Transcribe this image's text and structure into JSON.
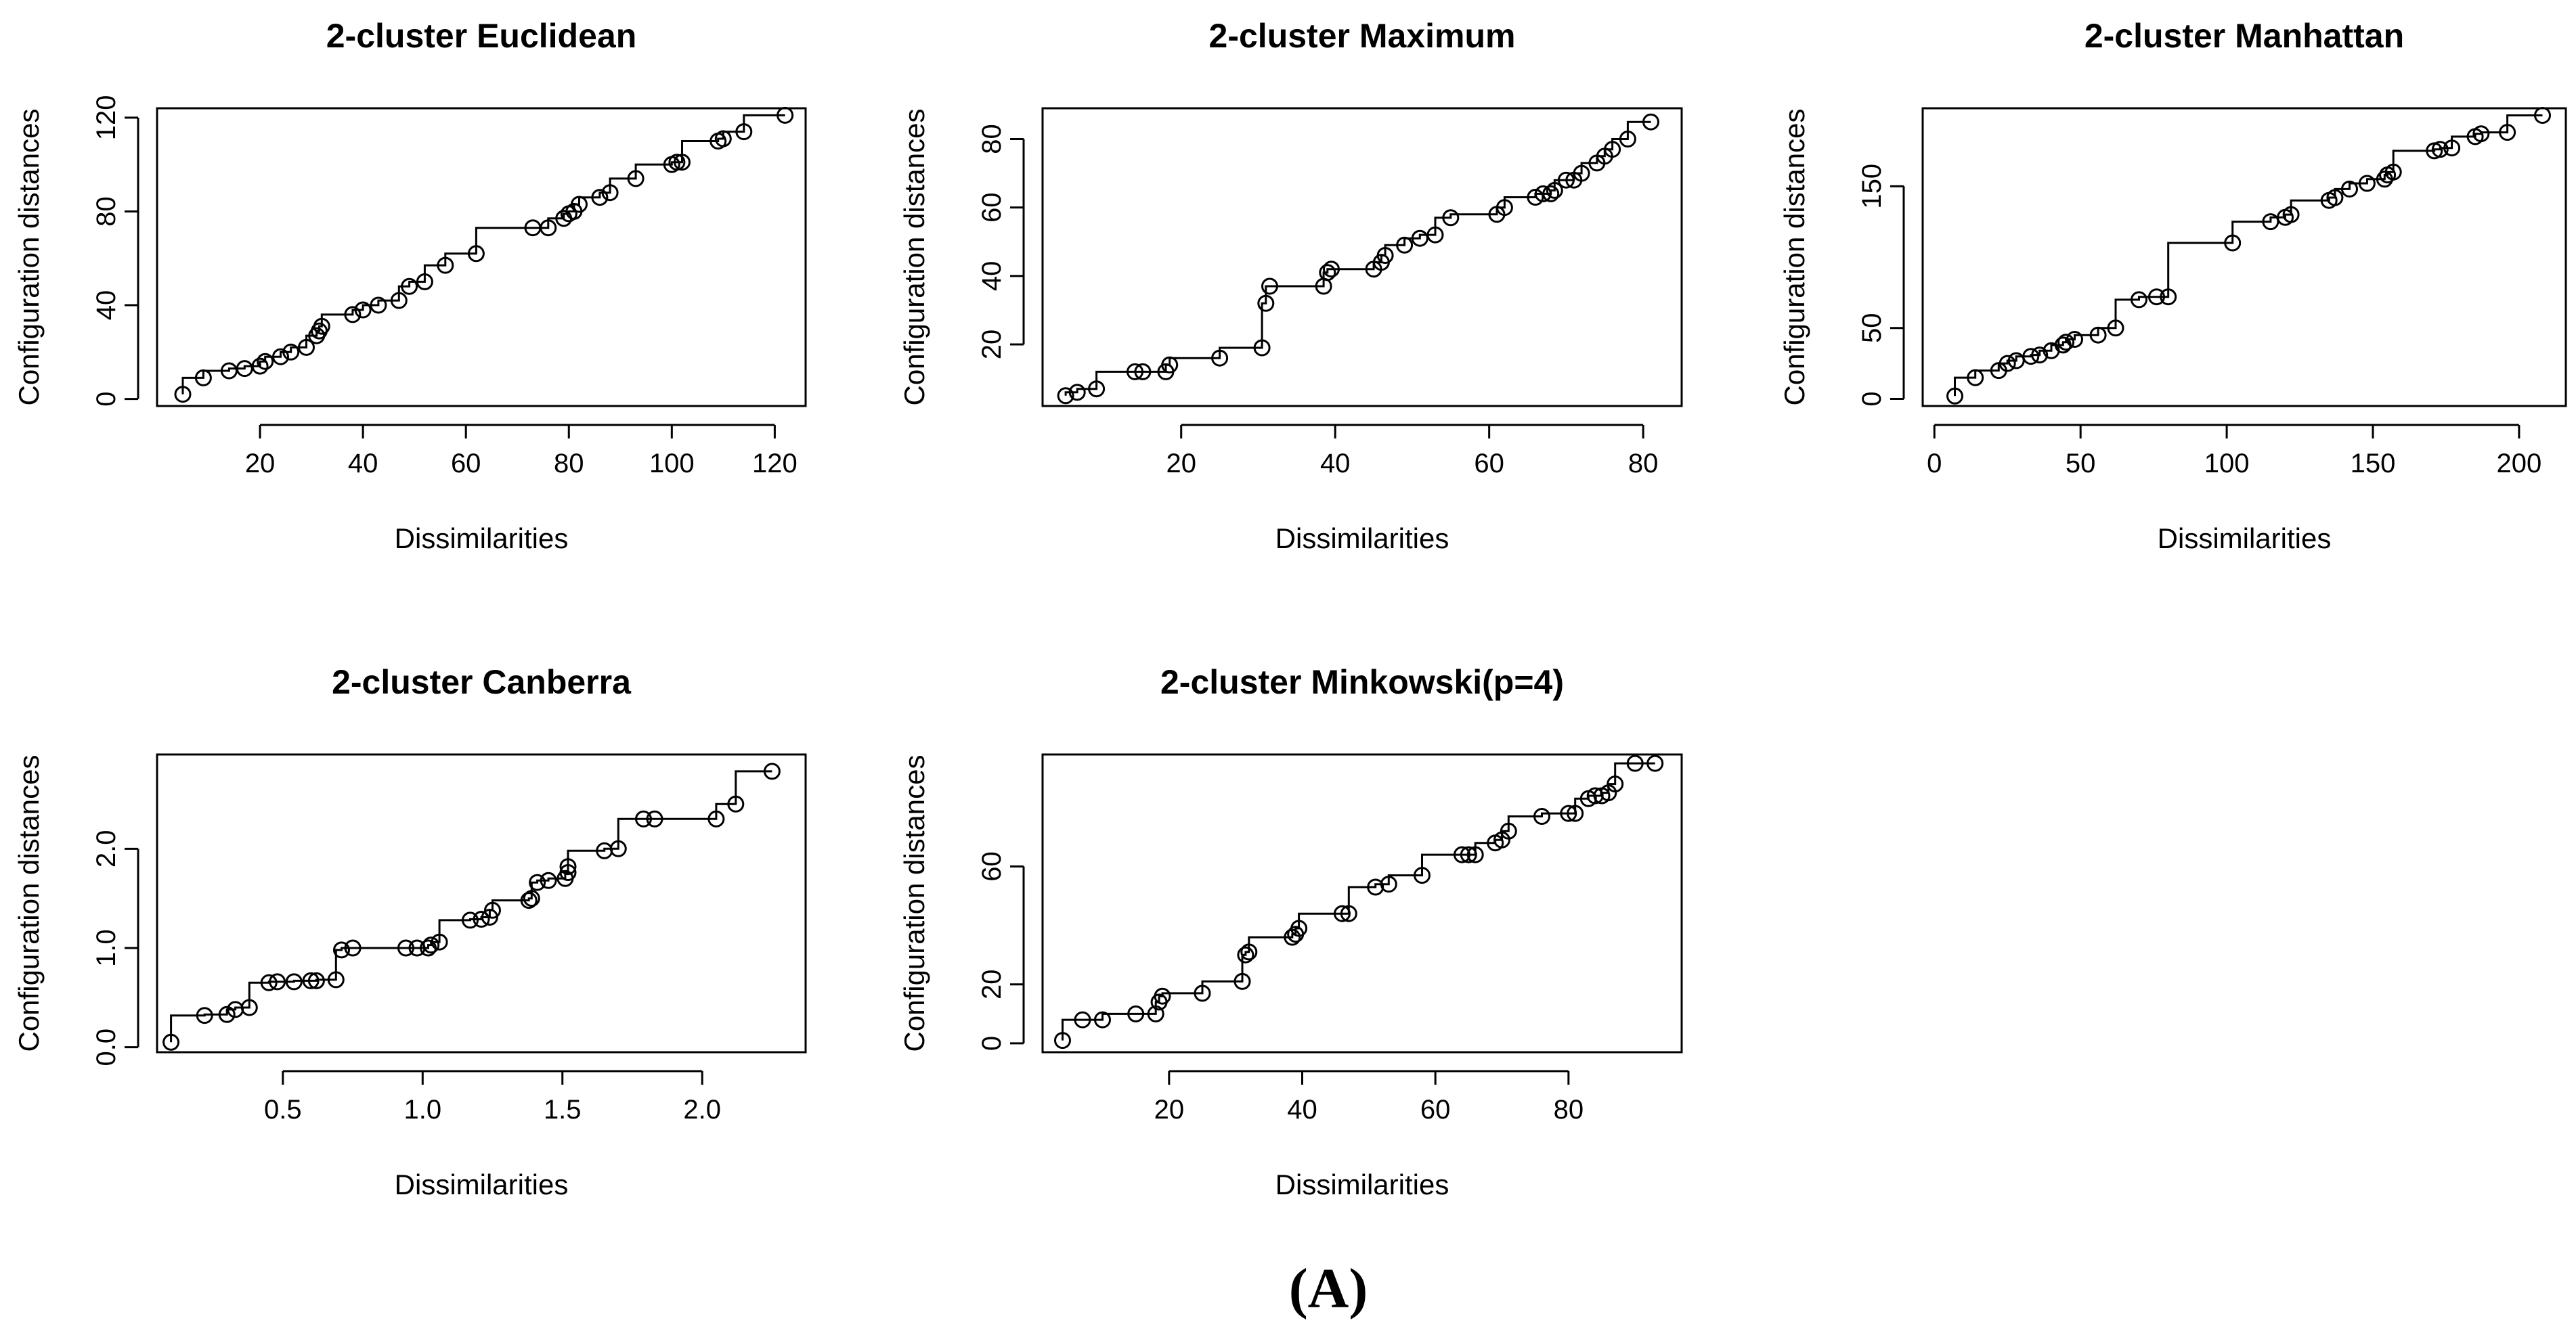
{
  "caption": "(A)",
  "chart_data": [
    {
      "type": "scatter",
      "title": "2-cluster Euclidean",
      "xlabel": "Dissimilarities",
      "ylabel": "Configuration distances",
      "xlim": [
        0,
        126
      ],
      "ylim": [
        -3,
        124
      ],
      "xticks": [
        20,
        40,
        60,
        80,
        100,
        120
      ],
      "yticks": [
        0,
        40,
        80,
        120
      ],
      "step_line": true,
      "points": [
        [
          5,
          2
        ],
        [
          9,
          9
        ],
        [
          14,
          12
        ],
        [
          17,
          13
        ],
        [
          20,
          14
        ],
        [
          21,
          16
        ],
        [
          24,
          18
        ],
        [
          26,
          20
        ],
        [
          29,
          22
        ],
        [
          31,
          27
        ],
        [
          31.5,
          29
        ],
        [
          32,
          31
        ],
        [
          38,
          36
        ],
        [
          40,
          38
        ],
        [
          43,
          40
        ],
        [
          47,
          42
        ],
        [
          49,
          48
        ],
        [
          52,
          50
        ],
        [
          56,
          57
        ],
        [
          62,
          62
        ],
        [
          73,
          73
        ],
        [
          76,
          73
        ],
        [
          79,
          77
        ],
        [
          80,
          79
        ],
        [
          81,
          80
        ],
        [
          82,
          83
        ],
        [
          86,
          86
        ],
        [
          88,
          88
        ],
        [
          93,
          94
        ],
        [
          100,
          100
        ],
        [
          101,
          101
        ],
        [
          102,
          101
        ],
        [
          109,
          110
        ],
        [
          110,
          111
        ],
        [
          114,
          114
        ],
        [
          122,
          121
        ]
      ]
    },
    {
      "type": "scatter",
      "title": "2-cluster Maximum",
      "xlabel": "Dissimilarities",
      "ylabel": "Configuration distances",
      "xlim": [
        2,
        85
      ],
      "ylim": [
        2,
        89
      ],
      "xticks": [
        20,
        40,
        60,
        80
      ],
      "yticks": [
        20,
        40,
        60,
        80
      ],
      "step_line": true,
      "points": [
        [
          5,
          5
        ],
        [
          6.5,
          6
        ],
        [
          9,
          7
        ],
        [
          14,
          12
        ],
        [
          15,
          12
        ],
        [
          18,
          12
        ],
        [
          18.5,
          14
        ],
        [
          25,
          16
        ],
        [
          30.5,
          19
        ],
        [
          31,
          32
        ],
        [
          31.5,
          37
        ],
        [
          38.5,
          37
        ],
        [
          39,
          41
        ],
        [
          39.5,
          42
        ],
        [
          45,
          42
        ],
        [
          46,
          44
        ],
        [
          46.5,
          46
        ],
        [
          49,
          49
        ],
        [
          51,
          51
        ],
        [
          53,
          52
        ],
        [
          55,
          57
        ],
        [
          61,
          58
        ],
        [
          62,
          60
        ],
        [
          66,
          63
        ],
        [
          67,
          64
        ],
        [
          68,
          64
        ],
        [
          68.5,
          65
        ],
        [
          70,
          68
        ],
        [
          71,
          68
        ],
        [
          72,
          70
        ],
        [
          74,
          73
        ],
        [
          75,
          75
        ],
        [
          76,
          77
        ],
        [
          78,
          80
        ],
        [
          81,
          85
        ]
      ]
    },
    {
      "type": "scatter",
      "title": "2-cluster Manhattan",
      "xlabel": "Dissimilarities",
      "ylabel": "Configuration distances",
      "xlim": [
        -4,
        216
      ],
      "ylim": [
        -5,
        205
      ],
      "xticks": [
        0,
        50,
        100,
        150,
        200
      ],
      "yticks": [
        0,
        50,
        150
      ],
      "step_line": true,
      "points": [
        [
          7,
          2
        ],
        [
          14,
          15
        ],
        [
          22,
          20
        ],
        [
          25,
          25
        ],
        [
          28,
          27
        ],
        [
          33,
          30
        ],
        [
          36,
          31
        ],
        [
          40,
          34
        ],
        [
          44,
          38
        ],
        [
          45,
          40
        ],
        [
          48,
          42
        ],
        [
          56,
          45
        ],
        [
          62,
          50
        ],
        [
          70,
          70
        ],
        [
          76,
          72
        ],
        [
          80,
          72
        ],
        [
          102,
          110
        ],
        [
          115,
          125
        ],
        [
          120,
          128
        ],
        [
          122,
          130
        ],
        [
          135,
          140
        ],
        [
          137,
          142
        ],
        [
          142,
          148
        ],
        [
          148,
          152
        ],
        [
          154,
          155
        ],
        [
          155,
          158
        ],
        [
          157,
          160
        ],
        [
          171,
          175
        ],
        [
          173,
          176
        ],
        [
          177,
          177
        ],
        [
          185,
          185
        ],
        [
          187,
          187
        ],
        [
          196,
          188
        ],
        [
          208,
          200
        ]
      ]
    },
    {
      "type": "scatter",
      "title": "2-cluster Canberra",
      "xlabel": "Dissimilarities",
      "ylabel": "Configuration distances",
      "xlim": [
        0.05,
        2.37
      ],
      "ylim": [
        -0.05,
        2.95
      ],
      "xticks": [
        0.5,
        1.0,
        1.5,
        2.0
      ],
      "xtick_labels": [
        "0.5",
        "1.0",
        "1.5",
        "2.0"
      ],
      "yticks": [
        0.0,
        1.0,
        2.0
      ],
      "ytick_labels": [
        "0.0",
        "1.0",
        "2.0"
      ],
      "step_line": true,
      "points": [
        [
          0.1,
          0.05
        ],
        [
          0.22,
          0.32
        ],
        [
          0.3,
          0.33
        ],
        [
          0.33,
          0.38
        ],
        [
          0.38,
          0.4
        ],
        [
          0.45,
          0.65
        ],
        [
          0.48,
          0.66
        ],
        [
          0.54,
          0.66
        ],
        [
          0.6,
          0.67
        ],
        [
          0.62,
          0.67
        ],
        [
          0.69,
          0.68
        ],
        [
          0.71,
          0.98
        ],
        [
          0.75,
          1.0
        ],
        [
          0.94,
          1.0
        ],
        [
          0.98,
          1.0
        ],
        [
          1.02,
          1.0
        ],
        [
          1.03,
          1.03
        ],
        [
          1.06,
          1.06
        ],
        [
          1.17,
          1.28
        ],
        [
          1.21,
          1.29
        ],
        [
          1.24,
          1.31
        ],
        [
          1.25,
          1.38
        ],
        [
          1.38,
          1.48
        ],
        [
          1.39,
          1.5
        ],
        [
          1.41,
          1.66
        ],
        [
          1.45,
          1.68
        ],
        [
          1.51,
          1.7
        ],
        [
          1.52,
          1.76
        ],
        [
          1.52,
          1.82
        ],
        [
          1.65,
          1.98
        ],
        [
          1.7,
          2.0
        ],
        [
          1.79,
          2.3
        ],
        [
          1.83,
          2.3
        ],
        [
          2.05,
          2.3
        ],
        [
          2.12,
          2.45
        ],
        [
          2.25,
          2.78
        ]
      ]
    },
    {
      "type": "scatter",
      "title": "2-cluster Minkowski(p=4)",
      "xlabel": "Dissimilarities",
      "ylabel": "Configuration distances",
      "xlim": [
        1,
        97
      ],
      "ylim": [
        -3,
        98
      ],
      "xticks": [
        20,
        40,
        60,
        80
      ],
      "yticks": [
        0,
        20,
        60
      ],
      "step_line": true,
      "points": [
        [
          4,
          1
        ],
        [
          7,
          8
        ],
        [
          10,
          8
        ],
        [
          15,
          10
        ],
        [
          18,
          10
        ],
        [
          18.5,
          14
        ],
        [
          19,
          16
        ],
        [
          25,
          17
        ],
        [
          31,
          21
        ],
        [
          31.5,
          30
        ],
        [
          32,
          31
        ],
        [
          38.5,
          36
        ],
        [
          39,
          37
        ],
        [
          39.5,
          39
        ],
        [
          46,
          44
        ],
        [
          47,
          44
        ],
        [
          51,
          53
        ],
        [
          53,
          54
        ],
        [
          58,
          57
        ],
        [
          64,
          64
        ],
        [
          65,
          64
        ],
        [
          66,
          64
        ],
        [
          69,
          68
        ],
        [
          70,
          69
        ],
        [
          71,
          72
        ],
        [
          76,
          77
        ],
        [
          80,
          78
        ],
        [
          81,
          78
        ],
        [
          83,
          83
        ],
        [
          84,
          84
        ],
        [
          85,
          84
        ],
        [
          86,
          85
        ],
        [
          87,
          88
        ],
        [
          90,
          95
        ],
        [
          93,
          95
        ]
      ]
    }
  ]
}
